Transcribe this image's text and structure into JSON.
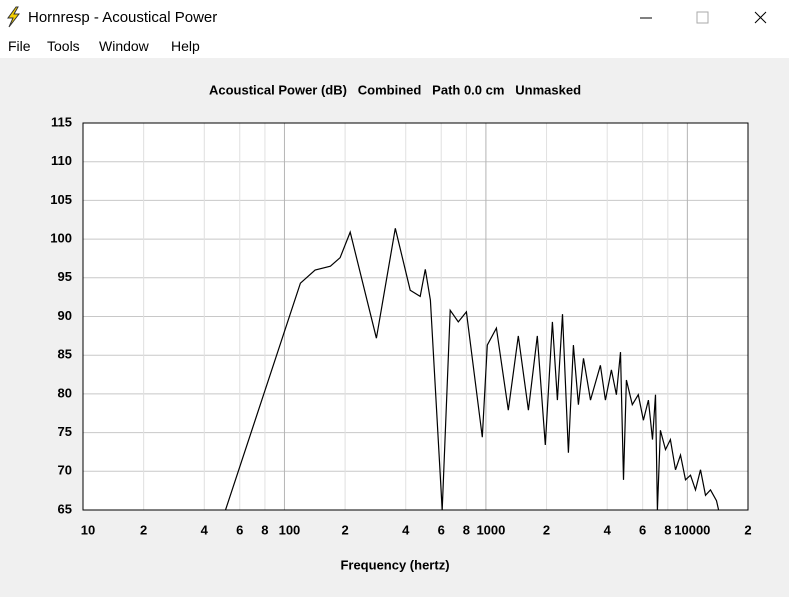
{
  "window": {
    "title": "Hornresp - Acoustical Power",
    "menu": [
      "File",
      "Tools",
      "Window",
      "Help"
    ]
  },
  "chart_data": {
    "type": "line",
    "title": "Acoustical Power (dB)   Combined   Path 0.0 cm   Unmasked",
    "xlabel": "Frequency (hertz)",
    "xscale": "log",
    "grid": true,
    "color": "#000000",
    "xlim": [
      10,
      20000
    ],
    "ylim": [
      65,
      115
    ],
    "xticks": [
      10,
      {
        "value": 20,
        "label": "2"
      },
      {
        "value": 40,
        "label": "4"
      },
      {
        "value": 60,
        "label": "6"
      },
      {
        "value": 80,
        "label": "8"
      },
      100,
      {
        "value": 200,
        "label": "2"
      },
      {
        "value": 400,
        "label": "4"
      },
      {
        "value": 600,
        "label": "6"
      },
      {
        "value": 800,
        "label": "8"
      },
      1000,
      {
        "value": 2000,
        "label": "2"
      },
      {
        "value": 4000,
        "label": "4"
      },
      {
        "value": 6000,
        "label": "6"
      },
      {
        "value": 8000,
        "label": "8"
      },
      10000,
      {
        "value": 20000,
        "label": "2"
      }
    ],
    "yticks": [
      65,
      70,
      75,
      80,
      85,
      90,
      95,
      100,
      105,
      110,
      115
    ],
    "x": [
      51,
      120,
      142,
      169,
      189,
      212,
      286,
      355,
      421,
      472,
      500,
      530,
      607,
      665,
      729,
      800,
      960,
      1016,
      1127,
      1292,
      1448,
      1625,
      1800,
      1972,
      2138,
      2264,
      2399,
      2566,
      2718,
      2879,
      3051,
      3305,
      3700,
      3920,
      4196,
      4446,
      4656,
      4820,
      4980,
      5330,
      5710,
      6050,
      6410,
      6715,
      6950,
      7100,
      7350,
      7790,
      8240,
      8730,
      9250,
      9790,
      10360,
      10970,
      11620,
      12310,
      13030,
      13960,
      14290
    ],
    "values": [
      65,
      94.3,
      96.0,
      96.5,
      97.6,
      100.9,
      87.2,
      101.4,
      93.4,
      92.6,
      96.1,
      92.1,
      65,
      90.8,
      89.3,
      90.6,
      74.4,
      86.3,
      88.5,
      77.9,
      87.5,
      77.9,
      87.5,
      73.4,
      89.3,
      79.2,
      90.3,
      72.4,
      86.3,
      78.6,
      84.6,
      79.2,
      83.7,
      79.2,
      83.1,
      79.9,
      85.4,
      68.9,
      81.8,
      78.6,
      79.9,
      76.6,
      79.2,
      74.1,
      79.9,
      65,
      75.3,
      72.8,
      74.1,
      70.2,
      72.1,
      68.9,
      69.5,
      67.6,
      70.2,
      66.9,
      67.6,
      66.2,
      65
    ]
  }
}
